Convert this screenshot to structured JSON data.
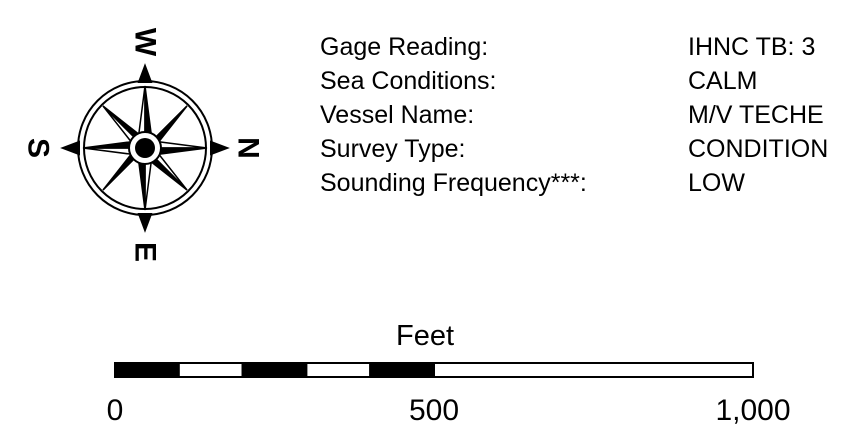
{
  "compass": {
    "north_label": "N",
    "south_label": "S",
    "east_label": "E",
    "west_label": "W"
  },
  "survey_info": [
    {
      "label": "Gage Reading:",
      "value": "IHNC TB: 3"
    },
    {
      "label": "Sea Conditions:",
      "value": "CALM"
    },
    {
      "label": "Vessel Name:",
      "value": "M/V TECHE"
    },
    {
      "label": "Survey Type:",
      "value": "CONDITION"
    },
    {
      "label": "Sounding Frequency***:",
      "value": "LOW"
    }
  ],
  "scale_bar": {
    "unit_label": "Feet",
    "tick_labels": [
      "0",
      "500",
      "1,000"
    ],
    "segments": [
      {
        "from": 0,
        "to": 100,
        "fill": "black"
      },
      {
        "from": 100,
        "to": 200,
        "fill": "white"
      },
      {
        "from": 200,
        "to": 300,
        "fill": "black"
      },
      {
        "from": 300,
        "to": 400,
        "fill": "white"
      },
      {
        "from": 400,
        "to": 500,
        "fill": "black"
      },
      {
        "from": 500,
        "to": 1000,
        "fill": "white"
      }
    ]
  }
}
